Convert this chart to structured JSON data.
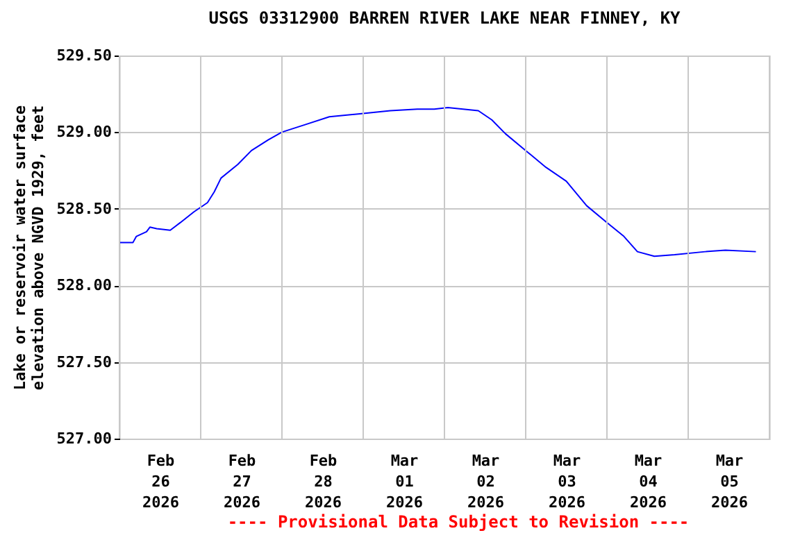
{
  "chart_data": {
    "type": "line",
    "title": "USGS 03312900 BARREN RIVER LAKE NEAR FINNEY, KY",
    "ylabel": "Lake or reservoir water surface\nelevation above NGVD 1929, feet",
    "annotations": [
      "---- Provisional Data Subject to Revision ----"
    ],
    "x": [
      "2026-02-26T00:00",
      "2026-02-26T04:00",
      "2026-02-26T05:00",
      "2026-02-26T08:00",
      "2026-02-26T09:00",
      "2026-02-26T11:00",
      "2026-02-26T15:00",
      "2026-02-26T18:00",
      "2026-02-26T22:00",
      "2026-02-27T02:00",
      "2026-02-27T04:00",
      "2026-02-27T06:00",
      "2026-02-27T11:00",
      "2026-02-27T15:00",
      "2026-02-27T20:00",
      "2026-02-28T00:00",
      "2026-02-28T07:00",
      "2026-02-28T14:00",
      "2026-02-28T23:00",
      "2026-03-01T08:00",
      "2026-03-01T16:00",
      "2026-03-01T21:00",
      "2026-03-02T01:00",
      "2026-03-02T10:00",
      "2026-03-02T14:00",
      "2026-03-02T18:00",
      "2026-03-03T00:00",
      "2026-03-03T06:00",
      "2026-03-03T12:00",
      "2026-03-03T18:00",
      "2026-03-04T00:00",
      "2026-03-04T05:00",
      "2026-03-04T09:00",
      "2026-03-04T14:00",
      "2026-03-04T20:00",
      "2026-03-05T05:00",
      "2026-03-05T11:00",
      "2026-03-05T20:00"
    ],
    "series": [
      {
        "color": "#0000ff",
        "values": [
          528.28,
          528.28,
          528.32,
          528.35,
          528.38,
          528.37,
          528.36,
          528.41,
          528.48,
          528.54,
          528.61,
          528.7,
          528.79,
          528.88,
          528.95,
          529.0,
          529.05,
          529.1,
          529.12,
          529.14,
          529.15,
          529.15,
          529.16,
          529.14,
          529.08,
          528.99,
          528.88,
          528.77,
          528.68,
          528.52,
          528.41,
          528.32,
          528.22,
          528.19,
          528.2,
          528.22,
          528.23,
          528.22
        ]
      }
    ],
    "xlim": [
      "2026-02-26T00:00",
      "2026-03-06T00:00"
    ],
    "xticks": [
      {
        "value": "2026-02-26T00:00",
        "label": null
      },
      {
        "value": "2026-02-26T12:00",
        "label": "Feb\n26\n2026"
      },
      {
        "value": "2026-02-27T00:00",
        "label": null
      },
      {
        "value": "2026-02-27T12:00",
        "label": "Feb\n27\n2026"
      },
      {
        "value": "2026-02-28T00:00",
        "label": null
      },
      {
        "value": "2026-02-28T12:00",
        "label": "Feb\n28\n2026"
      },
      {
        "value": "2026-03-01T00:00",
        "label": null
      },
      {
        "value": "2026-03-01T12:00",
        "label": "Mar\n01\n2026"
      },
      {
        "value": "2026-03-02T00:00",
        "label": null
      },
      {
        "value": "2026-03-02T12:00",
        "label": "Mar\n02\n2026"
      },
      {
        "value": "2026-03-03T00:00",
        "label": null
      },
      {
        "value": "2026-03-03T12:00",
        "label": "Mar\n03\n2026"
      },
      {
        "value": "2026-03-04T00:00",
        "label": null
      },
      {
        "value": "2026-03-04T12:00",
        "label": "Mar\n04\n2026"
      },
      {
        "value": "2026-03-05T00:00",
        "label": null
      },
      {
        "value": "2026-03-05T12:00",
        "label": "Mar\n05\n2026"
      },
      {
        "value": "2026-03-06T00:00",
        "label": null
      }
    ],
    "ylim": [
      527.0,
      529.5
    ],
    "yticks": [
      {
        "value": 527.0,
        "label": "527.00"
      },
      {
        "value": 527.5,
        "label": "527.50"
      },
      {
        "value": 528.0,
        "label": "528.00"
      },
      {
        "value": 528.5,
        "label": "528.50"
      },
      {
        "value": 529.0,
        "label": "529.00"
      },
      {
        "value": 529.5,
        "label": "529.50"
      }
    ],
    "grid": true
  }
}
